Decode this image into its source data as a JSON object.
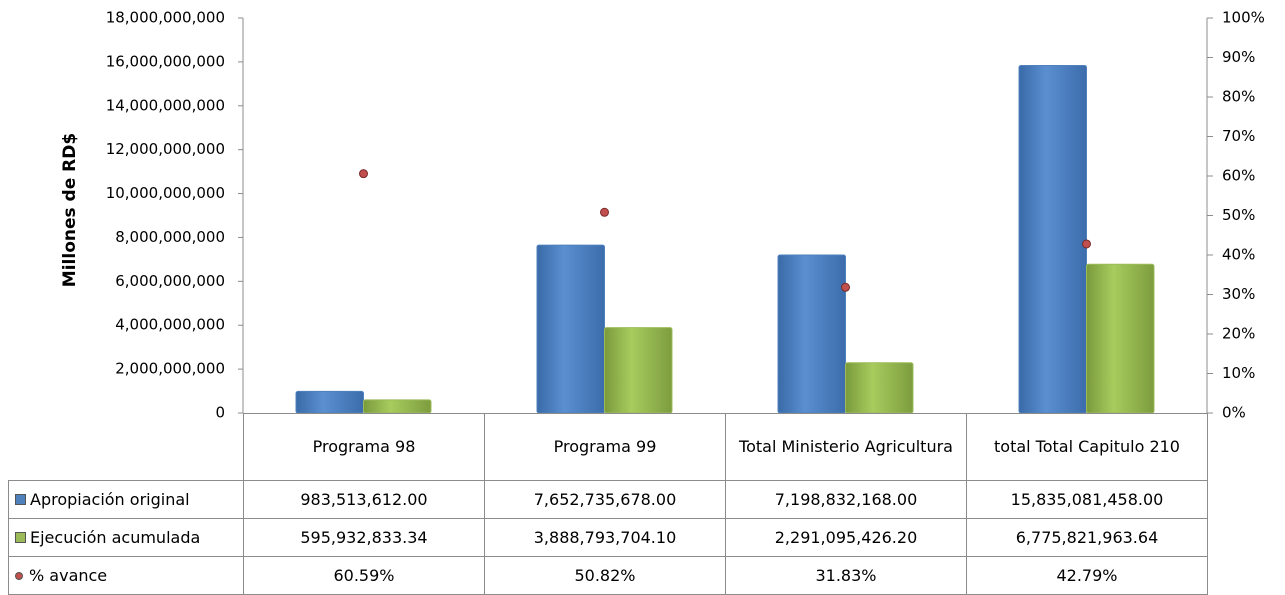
{
  "chart_data": {
    "type": "bar",
    "y_label": "Millones de RD$",
    "categories": [
      "Programa 98",
      "Programa 99",
      "Total Ministerio Agricultura",
      "total Total Capitulo 210"
    ],
    "series": [
      {
        "name": "Apropiación original",
        "color": "#4f81bd",
        "values": [
          983513612.0,
          7652735678.0,
          7198832168.0,
          15835081458.0
        ],
        "value_labels": [
          "983,513,612.00",
          "7,652,735,678.00",
          "7,198,832,168.00",
          "15,835,081,458.00"
        ]
      },
      {
        "name": "Ejecución acumulada",
        "color": "#9bbb59",
        "values": [
          595932833.34,
          3888793704.1,
          2291095426.2,
          6775821963.64
        ],
        "value_labels": [
          "595,932,833.34",
          "3,888,793,704.10",
          "2,291,095,426.20",
          "6,775,821,963.64"
        ]
      },
      {
        "name": "% avance",
        "color": "#c0504d",
        "axis": "y2",
        "values": [
          60.59,
          50.82,
          31.83,
          42.79
        ],
        "value_labels": [
          "60.59%",
          "50.82%",
          "31.83%",
          "42.79%"
        ]
      }
    ],
    "ylim": [
      0,
      18000000000
    ],
    "yticks": [
      0,
      {
        "value": 2000000000,
        "label": "2,000,000,000"
      },
      {
        "value": 4000000000,
        "label": "4,000,000,000"
      },
      {
        "value": 6000000000,
        "label": "6,000,000,000"
      },
      {
        "value": 8000000000,
        "label": "8,000,000,000"
      },
      {
        "value": 10000000000,
        "label": "10,000,000,000"
      },
      {
        "value": 12000000000,
        "label": "12,000,000,000"
      },
      {
        "value": 14000000000,
        "label": "14,000,000,000"
      },
      {
        "value": 16000000000,
        "label": "16,000,000,000"
      },
      {
        "value": 18000000000,
        "label": "18,000,000,000"
      }
    ],
    "y2lim": [
      0,
      100
    ],
    "y2ticks": [
      {
        "value": 0,
        "label": "0%"
      },
      {
        "value": 10,
        "label": "10%"
      },
      {
        "value": 20,
        "label": "20%"
      },
      {
        "value": 30,
        "label": "30%"
      },
      {
        "value": 40,
        "label": "40%"
      },
      {
        "value": 50,
        "label": "50%"
      },
      {
        "value": 60,
        "label": "60%"
      },
      {
        "value": 70,
        "label": "70%"
      },
      {
        "value": 80,
        "label": "80%"
      },
      {
        "value": 90,
        "label": "90%"
      },
      {
        "value": 100,
        "label": "100%"
      }
    ],
    "grid": false
  }
}
